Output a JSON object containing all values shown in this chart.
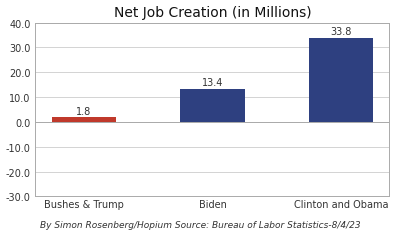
{
  "title": "Net Job Creation (in Millions)",
  "categories": [
    "Bushes & Trump",
    "Biden",
    "Clinton and Obama"
  ],
  "values": [
    1.8,
    13.4,
    33.8
  ],
  "bar_colors": [
    "#c0392b",
    "#2e4080",
    "#2e4080"
  ],
  "ylim": [
    -30,
    40
  ],
  "yticks": [
    -30.0,
    -20.0,
    -10.0,
    0.0,
    10.0,
    20.0,
    30.0,
    40.0
  ],
  "footnote": "By Simon Rosenberg/Hopium Source: Bureau of Labor Statistics-8/4/23",
  "bg_color": "#ffffff",
  "plot_bg_color": "#ffffff",
  "label_fontsize": 7,
  "title_fontsize": 10,
  "footnote_fontsize": 6.5,
  "value_labels": [
    "1.8",
    "13.4",
    "33.8"
  ],
  "bar_width": 0.5,
  "grid_color": "#cccccc",
  "spine_color": "#aaaaaa"
}
